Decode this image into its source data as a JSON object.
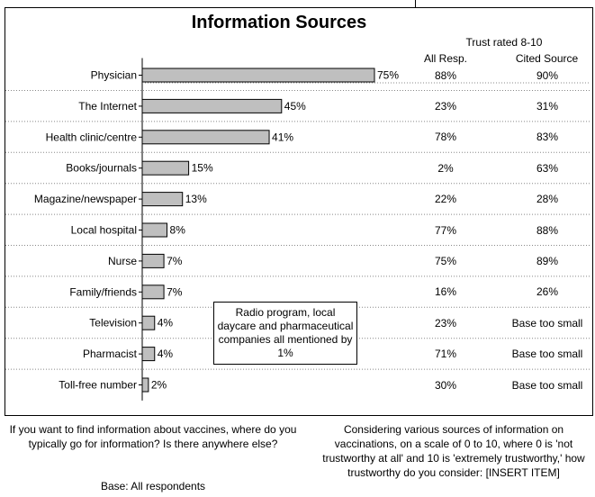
{
  "title": "Information Sources",
  "trust_title": "Trust rated 8-10",
  "col_all": "All Resp.",
  "col_cited": "Cited Source",
  "note": "Radio program, local daycare and pharmaceutical companies all mentioned by 1%",
  "footer_left": "If you want to find information about vaccines, where do you typically go for information? Is there anywhere else?",
  "footer_base": "Base: All respondents",
  "footer_right": "Considering various sources of information on vaccinations, on a scale of 0 to 10, where 0 is 'not trustworthy at all' and 10 is 'extremely trustworthy,' how trustworthy do you consider: [INSERT ITEM]",
  "colors": {
    "bar_fill": "#bfbfbf",
    "bar_stroke": "#000000",
    "separator": "#888888"
  },
  "chart_data": {
    "type": "bar",
    "orientation": "horizontal",
    "title": "Information Sources",
    "categories": [
      "Physician",
      "The Internet",
      "Health clinic/centre",
      "Books/journals",
      "Magazine/newspaper",
      "Local hospital",
      "Nurse",
      "Family/friends",
      "Television",
      "Pharmacist",
      "Toll-free number"
    ],
    "values": [
      75,
      45,
      41,
      15,
      13,
      8,
      7,
      7,
      4,
      4,
      2
    ],
    "value_labels": [
      "75%",
      "45%",
      "41%",
      "15%",
      "13%",
      "8%",
      "7%",
      "7%",
      "4%",
      "4%",
      "2%"
    ],
    "xlim": [
      0,
      100
    ],
    "table": {
      "all_resp": [
        "88%",
        "23%",
        "78%",
        "2%",
        "22%",
        "77%",
        "75%",
        "16%",
        "23%",
        "71%",
        "30%"
      ],
      "cited_source": [
        "90%",
        "31%",
        "83%",
        "63%",
        "28%",
        "88%",
        "89%",
        "26%",
        "Base too small",
        "Base too small",
        "Base too small"
      ]
    }
  }
}
